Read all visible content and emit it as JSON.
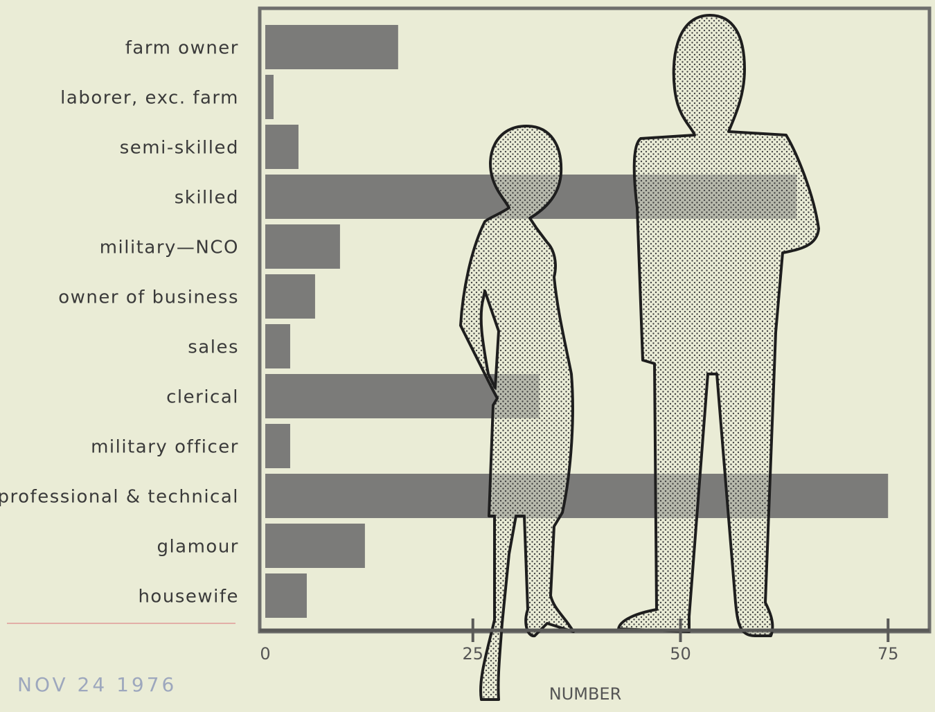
{
  "chart_data": {
    "type": "bar",
    "orientation": "horizontal",
    "x_label": "NUMBER",
    "categories": [
      "farm owner",
      "laborer, exc. farm",
      "semi-skilled",
      "skilled",
      "military—NCO",
      "owner of business",
      "sales",
      "clerical",
      "military officer",
      "professional & technical",
      "glamour",
      "housewife"
    ],
    "values": [
      16,
      1,
      4,
      64,
      9,
      6,
      3,
      33,
      3,
      75,
      12,
      5
    ],
    "color": "#7b7b79",
    "xlim": [
      0,
      80
    ],
    "xticks": [
      0,
      25,
      50,
      75
    ],
    "annotations": [
      "NOV 24 1976"
    ]
  }
}
